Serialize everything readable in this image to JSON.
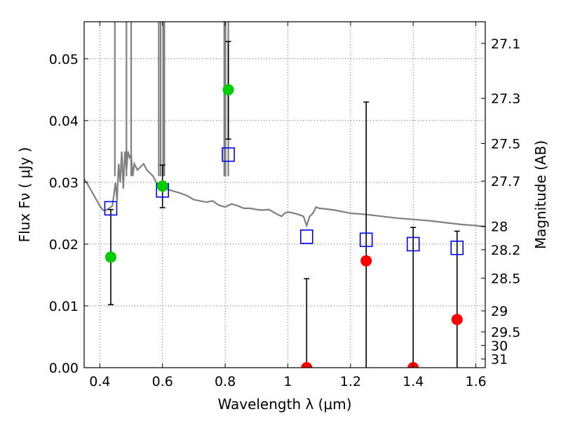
{
  "chart_data": {
    "type": "scatter",
    "xlabel": "Wavelength  λ (μm)",
    "ylabel": "Flux  Fν  ( μJy )",
    "y2label": "Magnitude (AB)",
    "xlim": [
      0.35,
      1.63
    ],
    "ylim": [
      0.0,
      0.056
    ],
    "grid": true,
    "x_ticks": [
      0.4,
      0.6,
      0.8,
      1.0,
      1.2,
      1.4,
      1.6
    ],
    "x_tick_labels": [
      "0.4",
      "0.6",
      "0.8",
      "1",
      "1.2",
      "1.4",
      "1.6"
    ],
    "y_ticks": [
      0.0,
      0.01,
      0.02,
      0.03,
      0.04,
      0.05
    ],
    "y_tick_labels": [
      "0.00",
      "0.01",
      "0.02",
      "0.03",
      "0.04",
      "0.05"
    ],
    "y2_ticks": [
      {
        "label": "27.1",
        "flux": 0.0525
      },
      {
        "label": "27.3",
        "flux": 0.0436
      },
      {
        "label": "27.5",
        "flux": 0.0363
      },
      {
        "label": "27.7",
        "flux": 0.0302
      },
      {
        "label": "28",
        "flux": 0.0229
      },
      {
        "label": "28.2",
        "flux": 0.0191
      },
      {
        "label": "28.5",
        "flux": 0.0145
      },
      {
        "label": "29",
        "flux": 0.0092
      },
      {
        "label": "29.5",
        "flux": 0.0058
      },
      {
        "label": "30",
        "flux": 0.0036
      },
      {
        "label": "31",
        "flux": 0.0014
      }
    ],
    "series": [
      {
        "marker": "line",
        "color": "#808080",
        "x": [
          0.35,
          0.36,
          0.38,
          0.4,
          0.41,
          0.42,
          0.43,
          0.44,
          0.445,
          0.45,
          0.455,
          0.46,
          0.465,
          0.47,
          0.475,
          0.48,
          0.485,
          0.49,
          0.495,
          0.5,
          0.505,
          0.51,
          0.52,
          0.53,
          0.54,
          0.55,
          0.56,
          0.57,
          0.58,
          0.59,
          0.6,
          0.61,
          0.62,
          0.64,
          0.66,
          0.68,
          0.7,
          0.72,
          0.74,
          0.76,
          0.78,
          0.8,
          0.82,
          0.84,
          0.86,
          0.88,
          0.9,
          0.92,
          0.94,
          0.96,
          0.98,
          0.99,
          1.0,
          1.02,
          1.04,
          1.05,
          1.06,
          1.07,
          1.08,
          1.09,
          1.1,
          1.12,
          1.15,
          1.2,
          1.25,
          1.3,
          1.35,
          1.4,
          1.45,
          1.5,
          1.55,
          1.6,
          1.63
        ],
        "y": [
          0.0305,
          0.0298,
          0.028,
          0.0262,
          0.0255,
          0.0255,
          0.0258,
          0.0262,
          0.028,
          0.03,
          0.027,
          0.033,
          0.03,
          0.035,
          0.029,
          0.035,
          0.032,
          0.035,
          0.034,
          0.0345,
          0.031,
          0.033,
          0.032,
          0.0325,
          0.033,
          0.032,
          0.0315,
          0.031,
          0.03,
          0.0295,
          0.0292,
          0.029,
          0.0288,
          0.0285,
          0.0282,
          0.0278,
          0.0272,
          0.027,
          0.0268,
          0.027,
          0.0263,
          0.026,
          0.0265,
          0.0262,
          0.0258,
          0.0258,
          0.0256,
          0.0255,
          0.0256,
          0.025,
          0.0245,
          0.025,
          0.0252,
          0.025,
          0.0247,
          0.0245,
          0.023,
          0.0245,
          0.025,
          0.026,
          0.0258,
          0.0257,
          0.0255,
          0.025,
          0.0248,
          0.0245,
          0.0242,
          0.024,
          0.0238,
          0.0235,
          0.0232,
          0.023,
          0.0228
        ]
      },
      {
        "marker": "spikes",
        "color": "#808080",
        "x": [
          0.448,
          0.485,
          0.5,
          0.588,
          0.594,
          0.602,
          0.606,
          0.797,
          0.801,
          0.81
        ],
        "y": [
          0.056,
          0.056,
          0.056,
          0.056,
          0.056,
          0.056,
          0.056,
          0.056,
          0.056,
          0.056
        ]
      },
      {
        "marker": "open-square",
        "color": "#0000ff",
        "x": [
          0.435,
          0.6,
          0.81,
          1.06,
          1.25,
          1.4,
          1.54
        ],
        "y": [
          0.0258,
          0.0287,
          0.0345,
          0.0212,
          0.0207,
          0.02,
          0.0194
        ]
      },
      {
        "marker": "filled-circle",
        "color": "#00cc00",
        "x": [
          0.435,
          0.6,
          0.81
        ],
        "y": [
          0.0179,
          0.0294,
          0.045
        ],
        "err_low": [
          0.0102,
          0.0259,
          0.037
        ],
        "err_high": [
          0.0256,
          0.0328,
          0.0528
        ]
      },
      {
        "marker": "filled-circle",
        "color": "#ff0000",
        "x": [
          1.06,
          1.25,
          1.4,
          1.54
        ],
        "y": [
          0.0,
          0.0173,
          0.0,
          0.0078
        ],
        "err_low": [
          0.0,
          0.0,
          0.0,
          0.0
        ],
        "err_high": [
          0.0144,
          0.043,
          0.0227,
          0.0221
        ]
      }
    ]
  }
}
